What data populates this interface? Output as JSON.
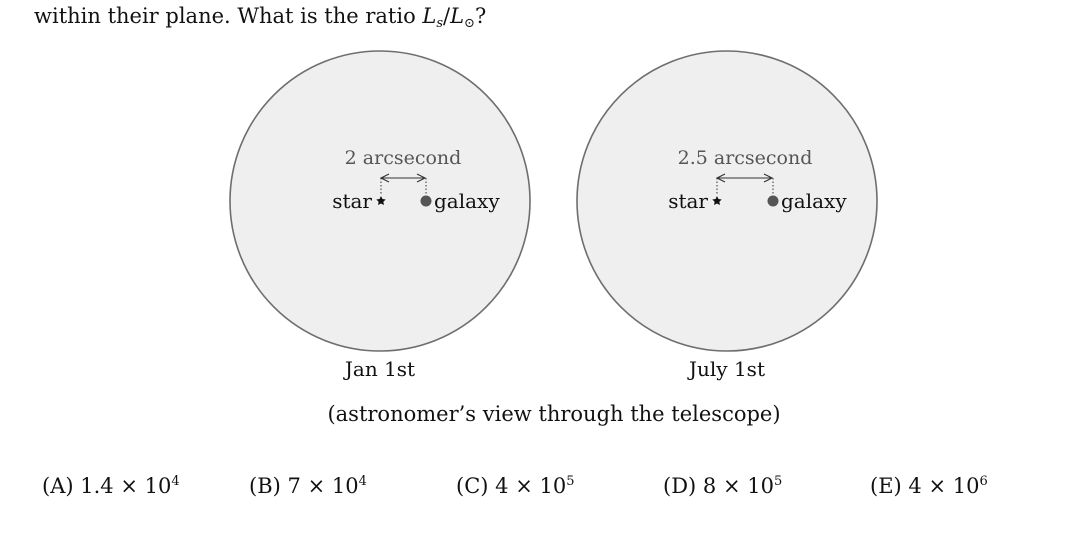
{
  "question": {
    "text_before": "within their plane. What is the ratio ",
    "ratio_numer": "L",
    "ratio_numer_sub": "s",
    "slash": "/",
    "ratio_denom": "L",
    "ratio_denom_sub": "⊙",
    "text_after": "?"
  },
  "panels": [
    {
      "separation_label": "2 arcsecond",
      "star_label": "star",
      "galaxy_label": "galaxy",
      "date_label": "Jan 1st"
    },
    {
      "separation_label": "2.5 arcsecond",
      "star_label": "star",
      "galaxy_label": "galaxy",
      "date_label": "July 1st"
    }
  ],
  "caption": "(astronomer’s view through the telescope)",
  "choices": [
    {
      "label": "(A)",
      "mantissa": "1.4",
      "times": "×",
      "base": "10",
      "exponent": "4"
    },
    {
      "label": "(B)",
      "mantissa": "7",
      "times": "×",
      "base": "10",
      "exponent": "4"
    },
    {
      "label": "(C)",
      "mantissa": "4",
      "times": "×",
      "base": "10",
      "exponent": "5"
    },
    {
      "label": "(D)",
      "mantissa": "8",
      "times": "×",
      "base": "10",
      "exponent": "5"
    },
    {
      "label": "(E)",
      "mantissa": "4",
      "times": "×",
      "base": "10",
      "exponent": "6"
    }
  ],
  "colors": {
    "circle_fill": "#efefef",
    "circle_stroke": "#6e6e6e",
    "galaxy_dot": "#555555",
    "label_gray": "#555555"
  }
}
